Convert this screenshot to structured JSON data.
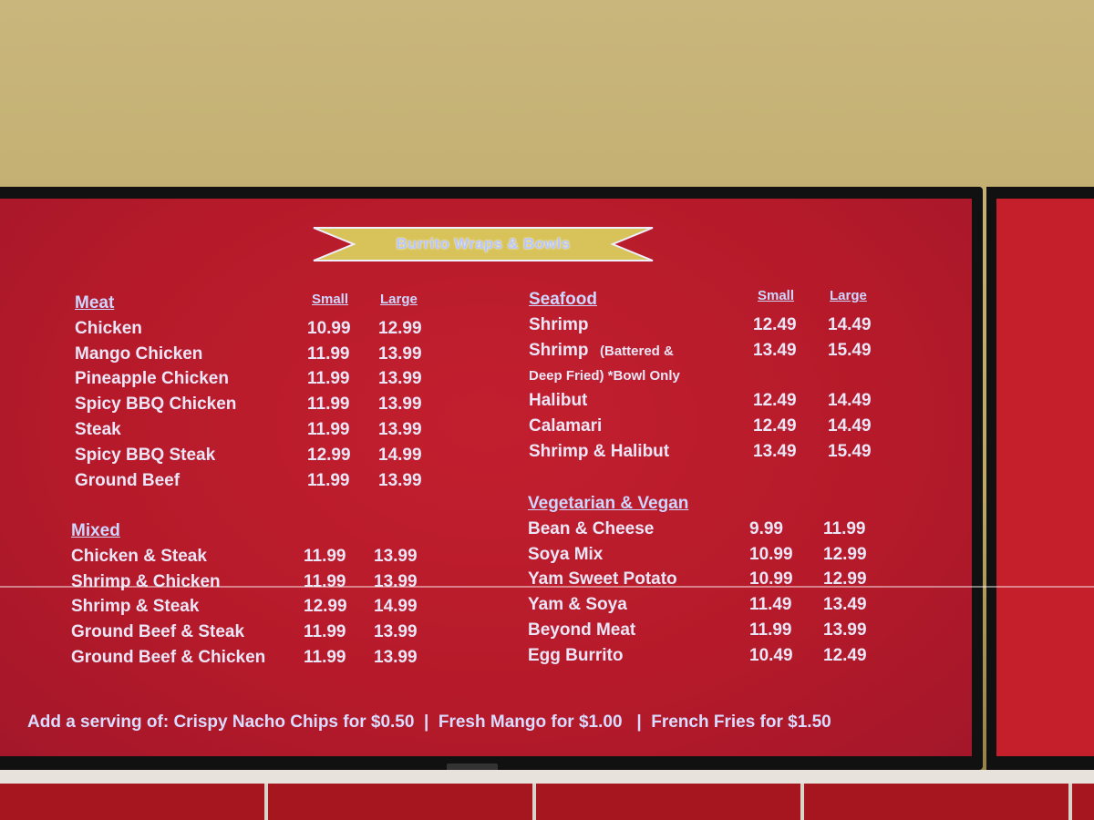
{
  "title": "Burrito Wraps & Bowls",
  "size_labels": {
    "small": "Small",
    "large": "Large"
  },
  "meat": {
    "heading": "Meat",
    "items": [
      {
        "name": "Chicken",
        "small": "10.99",
        "large": "12.99"
      },
      {
        "name": "Mango Chicken",
        "small": "11.99",
        "large": "13.99"
      },
      {
        "name": "Pineapple Chicken",
        "small": "11.99",
        "large": "13.99"
      },
      {
        "name": "Spicy BBQ Chicken",
        "small": "11.99",
        "large": "13.99"
      },
      {
        "name": "Steak",
        "small": "11.99",
        "large": "13.99"
      },
      {
        "name": "Spicy BBQ Steak",
        "small": "12.99",
        "large": "14.99"
      },
      {
        "name": "Ground Beef",
        "small": "11.99",
        "large": "13.99"
      }
    ]
  },
  "mixed": {
    "heading": "Mixed",
    "items": [
      {
        "name": "Chicken & Steak",
        "small": "11.99",
        "large": "13.99"
      },
      {
        "name": "Shrimp & Chicken",
        "small": "11.99",
        "large": "13.99"
      },
      {
        "name": "Shrimp & Steak",
        "small": "12.99",
        "large": "14.99"
      },
      {
        "name": "Ground Beef & Steak",
        "small": "11.99",
        "large": "13.99"
      },
      {
        "name": "Ground Beef & Chicken",
        "small": "11.99",
        "large": "13.99"
      }
    ]
  },
  "seafood": {
    "heading": "Seafood",
    "items": [
      {
        "name": "Shrimp",
        "small": "12.49",
        "large": "14.49"
      },
      {
        "name": "Shrimp",
        "note": "(Battered &",
        "small": "13.49",
        "large": "15.49"
      },
      {
        "name": "",
        "note": "Deep Fried) *Bowl Only",
        "small": "",
        "large": ""
      },
      {
        "name": "Halibut",
        "small": "12.49",
        "large": "14.49"
      },
      {
        "name": "Calamari",
        "small": "12.49",
        "large": "14.49"
      },
      {
        "name": "Shrimp & Halibut",
        "small": "13.49",
        "large": "15.49"
      }
    ]
  },
  "vegetarian": {
    "heading": "Vegetarian & Vegan",
    "items": [
      {
        "name": "Bean & Cheese",
        "small": "9.99",
        "large": "11.99"
      },
      {
        "name": "Soya Mix",
        "small": "10.99",
        "large": "12.99"
      },
      {
        "name": "Yam Sweet Potato",
        "small": "10.99",
        "large": "12.99"
      },
      {
        "name": "Yam & Soya",
        "small": "11.49",
        "large": "13.49"
      },
      {
        "name": "Beyond Meat",
        "small": "11.99",
        "large": "13.99"
      },
      {
        "name": "Egg Burrito",
        "small": "10.49",
        "large": "12.49"
      }
    ]
  },
  "footer": "Add a serving of: Crispy Nacho Chips for $0.50  |  Fresh Mango for $1.00   |  French Fries for $1.50",
  "colors": {
    "screen": "#b81c2a",
    "text": "#ebe6f7",
    "banner": "#d8c35a"
  }
}
